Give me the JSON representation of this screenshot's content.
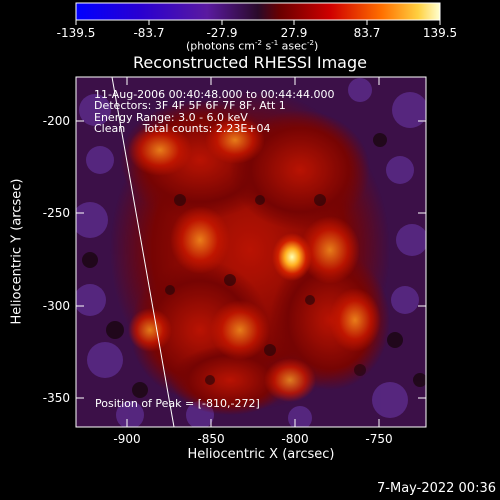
{
  "colorbar": {
    "ticks": [
      "-139.5",
      "-83.7",
      "-27.9",
      "27.9",
      "83.7",
      "139.5"
    ],
    "unit_parts": [
      "(photons cm",
      "-2",
      " s",
      "-1",
      " asec",
      "-2",
      ")"
    ]
  },
  "title": "Reconstructed RHESSI Image",
  "info": {
    "line1": "11-Aug-2006 00:40:48.000 to 00:44:44.000",
    "line2": "Detectors: 3F 4F 5F 6F 7F 8F, Att 1",
    "line3": "Energy Range: 3.0 - 6.0 keV",
    "line4": "Clean     Total counts: 2.23E+04"
  },
  "peak": "Position of Peak = [-810,-272]",
  "axes": {
    "xlabel": "Heliocentric X (arcsec)",
    "ylabel": "Heliocentric Y (arcsec)",
    "xticks": [
      "-900",
      "-850",
      "-800",
      "-750"
    ],
    "yticks": [
      "-200",
      "-250",
      "-300",
      "-350"
    ]
  },
  "timestamp": "7-May-2022 00:36",
  "colors": {
    "background": "#000000",
    "text": "#ffffff",
    "limb_line": "#ffffff"
  }
}
